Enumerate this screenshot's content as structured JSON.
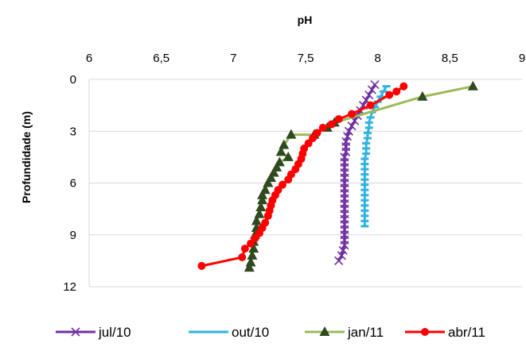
{
  "chart_data": {
    "type": "line",
    "title": "",
    "xlabel": "pH",
    "ylabel": "Profundidade  (m)",
    "xlim": [
      6,
      9
    ],
    "ylim": [
      0,
      12
    ],
    "y_inverted": true,
    "x_axis_position": "top",
    "xticks": [
      "6",
      "6,5",
      "7",
      "7,5",
      "8",
      "8,5",
      "9"
    ],
    "xtick_values": [
      6,
      6.5,
      7,
      7.5,
      8,
      8.5,
      9
    ],
    "yticks": [
      "0",
      "3",
      "6",
      "9",
      "12"
    ],
    "ytick_values": [
      0,
      3,
      6,
      9,
      12
    ],
    "grid": "horizontal",
    "legend_position": "bottom",
    "series": [
      {
        "name": "jul/10",
        "color": "#7030a0",
        "marker": "x",
        "points": [
          [
            7.98,
            0.3
          ],
          [
            7.96,
            0.6
          ],
          [
            7.94,
            0.9
          ],
          [
            7.92,
            1.2
          ],
          [
            7.9,
            1.5
          ],
          [
            7.88,
            1.8
          ],
          [
            7.86,
            2.1
          ],
          [
            7.84,
            2.4
          ],
          [
            7.82,
            2.7
          ],
          [
            7.8,
            3.0
          ],
          [
            7.79,
            3.3
          ],
          [
            7.78,
            3.6
          ],
          [
            7.78,
            3.9
          ],
          [
            7.78,
            4.2
          ],
          [
            7.77,
            4.5
          ],
          [
            7.77,
            4.8
          ],
          [
            7.77,
            5.1
          ],
          [
            7.77,
            5.4
          ],
          [
            7.77,
            5.7
          ],
          [
            7.77,
            6.0
          ],
          [
            7.77,
            6.3
          ],
          [
            7.77,
            6.6
          ],
          [
            7.77,
            6.9
          ],
          [
            7.77,
            7.2
          ],
          [
            7.77,
            7.5
          ],
          [
            7.77,
            7.8
          ],
          [
            7.77,
            8.1
          ],
          [
            7.77,
            8.4
          ],
          [
            7.77,
            8.7
          ],
          [
            7.77,
            9.0
          ],
          [
            7.77,
            9.3
          ],
          [
            7.77,
            9.6
          ],
          [
            7.76,
            9.9
          ],
          [
            7.75,
            10.2
          ],
          [
            7.73,
            10.5
          ]
        ]
      },
      {
        "name": "out/10",
        "color": "#31b3e1",
        "marker": "dash",
        "points": [
          [
            8.06,
            0.4
          ],
          [
            8.04,
            0.7
          ],
          [
            8.02,
            1.0
          ],
          [
            8.0,
            1.3
          ],
          [
            7.98,
            1.6
          ],
          [
            7.96,
            1.9
          ],
          [
            7.95,
            2.2
          ],
          [
            7.94,
            2.5
          ],
          [
            7.94,
            2.8
          ],
          [
            7.93,
            3.1
          ],
          [
            7.93,
            3.4
          ],
          [
            7.92,
            3.7
          ],
          [
            7.92,
            4.0
          ],
          [
            7.92,
            4.3
          ],
          [
            7.91,
            4.6
          ],
          [
            7.91,
            4.9
          ],
          [
            7.91,
            5.2
          ],
          [
            7.91,
            5.5
          ],
          [
            7.91,
            5.8
          ],
          [
            7.91,
            6.1
          ],
          [
            7.91,
            6.4
          ],
          [
            7.91,
            6.7
          ],
          [
            7.91,
            7.0
          ],
          [
            7.91,
            7.3
          ],
          [
            7.91,
            7.6
          ],
          [
            7.91,
            7.9
          ],
          [
            7.91,
            8.2
          ],
          [
            7.91,
            8.5
          ]
        ]
      },
      {
        "name": "jan/11",
        "color": "#9bbb59",
        "markerColor": "#2e4a1e",
        "marker": "triangle",
        "points": [
          [
            8.66,
            0.4
          ],
          [
            8.31,
            1.0
          ],
          [
            7.7,
            2.5
          ],
          [
            7.65,
            2.8
          ],
          [
            7.56,
            3.2
          ],
          [
            7.4,
            3.2
          ],
          [
            7.35,
            3.8
          ],
          [
            7.33,
            4.2
          ],
          [
            7.38,
            4.5
          ],
          [
            7.32,
            4.8
          ],
          [
            7.3,
            5.1
          ],
          [
            7.28,
            5.4
          ],
          [
            7.26,
            5.7
          ],
          [
            7.24,
            6.0
          ],
          [
            7.22,
            6.4
          ],
          [
            7.2,
            6.7
          ],
          [
            7.2,
            7.0
          ],
          [
            7.19,
            7.4
          ],
          [
            7.18,
            7.8
          ],
          [
            7.16,
            8.2
          ],
          [
            7.16,
            8.6
          ],
          [
            7.15,
            9.0
          ],
          [
            7.14,
            9.4
          ],
          [
            7.14,
            9.8
          ],
          [
            7.13,
            10.2
          ],
          [
            7.12,
            10.6
          ],
          [
            7.11,
            10.9
          ]
        ]
      },
      {
        "name": "abr/11",
        "color": "#ff0000",
        "marker": "circle",
        "points": [
          [
            8.18,
            0.4
          ],
          [
            8.13,
            0.7
          ],
          [
            8.08,
            0.9
          ],
          [
            7.95,
            1.5
          ],
          [
            7.82,
            2.0
          ],
          [
            7.73,
            2.3
          ],
          [
            7.68,
            2.6
          ],
          [
            7.62,
            2.8
          ],
          [
            7.58,
            3.1
          ],
          [
            7.55,
            3.4
          ],
          [
            7.52,
            3.7
          ],
          [
            7.49,
            4.0
          ],
          [
            7.48,
            4.3
          ],
          [
            7.47,
            4.6
          ],
          [
            7.45,
            4.9
          ],
          [
            7.43,
            5.2
          ],
          [
            7.4,
            5.5
          ],
          [
            7.38,
            5.8
          ],
          [
            7.34,
            6.1
          ],
          [
            7.31,
            6.4
          ],
          [
            7.29,
            6.7
          ],
          [
            7.27,
            7.0
          ],
          [
            7.26,
            7.3
          ],
          [
            7.25,
            7.6
          ],
          [
            7.24,
            7.9
          ],
          [
            7.22,
            8.3
          ],
          [
            7.2,
            8.6
          ],
          [
            7.18,
            8.9
          ],
          [
            7.15,
            9.2
          ],
          [
            7.12,
            9.5
          ],
          [
            7.08,
            9.8
          ],
          [
            7.06,
            10.3
          ],
          [
            6.78,
            10.8
          ]
        ]
      }
    ]
  }
}
